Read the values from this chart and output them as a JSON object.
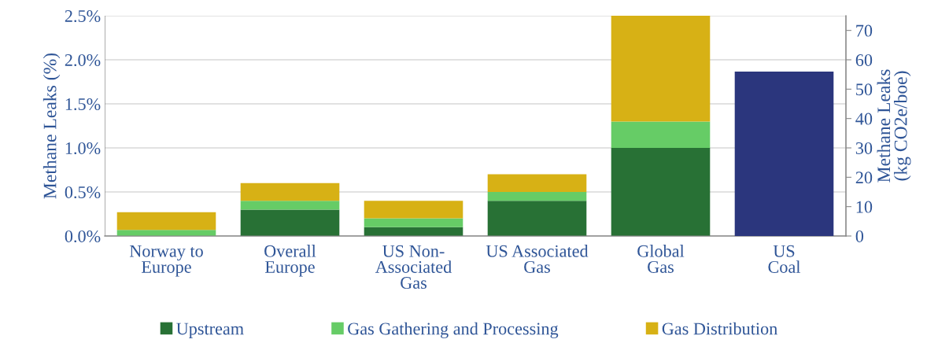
{
  "chart_data": {
    "type": "bar",
    "stacked": true,
    "categories": [
      "Norway to\nEurope",
      "Overall\nEurope",
      "US Non-\nAssociated\nGas",
      "US Associated\nGas",
      "Global\nGas",
      "US\nCoal"
    ],
    "ylabel": "Methane Leaks (%)",
    "y2label": "Methane Leaks\n(kg CO2e/boe)",
    "ylim": [
      0,
      2.5
    ],
    "yticks": [
      {
        "value": 0,
        "label": "0.0%"
      },
      {
        "value": 0.5,
        "label": "0.5%"
      },
      {
        "value": 1.0,
        "label": "1.0%"
      },
      {
        "value": 1.5,
        "label": "1.5%"
      },
      {
        "value": 2.0,
        "label": "2.0%"
      },
      {
        "value": 2.5,
        "label": "2.5%"
      }
    ],
    "y2lim": [
      0,
      75
    ],
    "y2ticks": [
      0,
      10,
      20,
      30,
      40,
      50,
      60,
      70
    ],
    "grid": "y",
    "legend": "bottom",
    "series": [
      {
        "name": "Upstream",
        "color": "#287135",
        "values": [
          0,
          0.3,
          0.1,
          0.4,
          1.0,
          null
        ]
      },
      {
        "name": "Gas Gathering and Processing",
        "color": "#66cc66",
        "values": [
          0.07,
          0.1,
          0.1,
          0.1,
          0.3,
          null
        ]
      },
      {
        "name": "Gas Distribution",
        "color": "#d7b115",
        "values": [
          0.2,
          0.2,
          0.2,
          0.2,
          1.2,
          null
        ]
      },
      {
        "color": "#2b367d",
        "axis": "y2",
        "values": [
          null,
          null,
          null,
          null,
          null,
          56
        ]
      }
    ]
  }
}
